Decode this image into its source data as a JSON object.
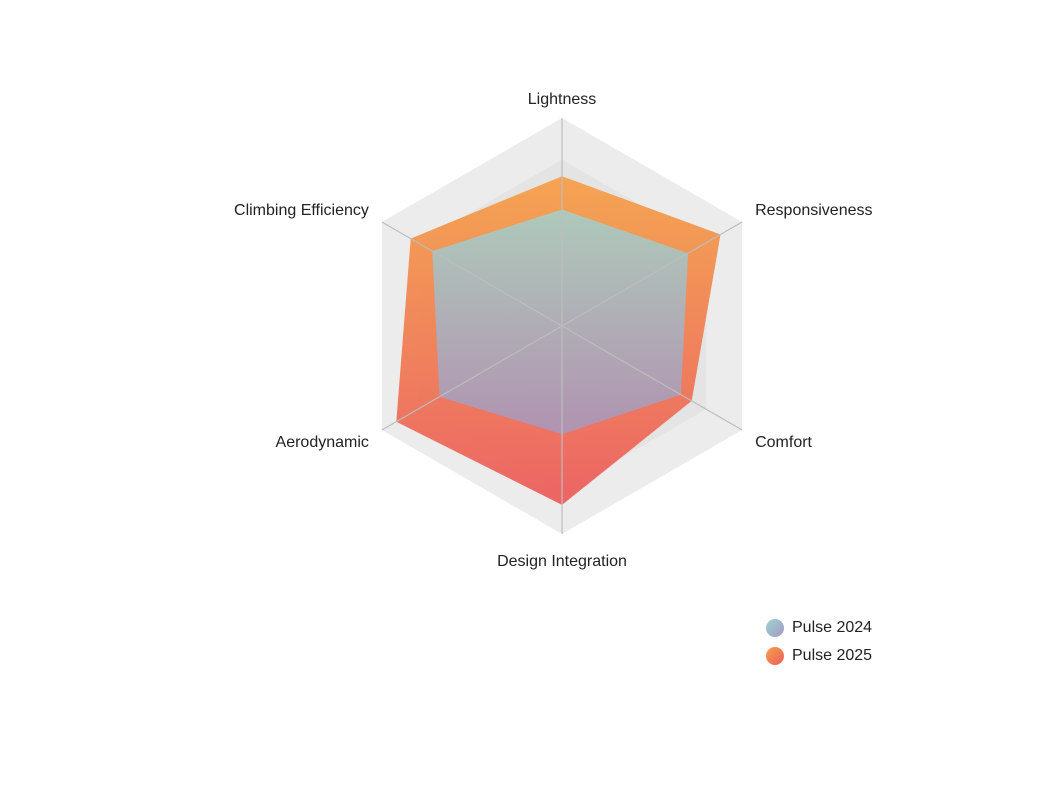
{
  "chart_data": {
    "type": "radar",
    "title": "",
    "categories": [
      "Lightness",
      "Responsiveness",
      "Comfort",
      "Design Integration",
      "Aerodynamic",
      "Climbing Efficiency"
    ],
    "range": [
      0,
      5
    ],
    "grid_levels": 5,
    "grid": true,
    "legend_position": "bottom-right",
    "series": [
      {
        "name": "Pulse 2024",
        "values": [
          2.8,
          3.5,
          3.3,
          2.6,
          3.4,
          3.6
        ],
        "gradient": [
          "#9fd3d1",
          "#a39ac2"
        ]
      },
      {
        "name": "Pulse 2025",
        "values": [
          3.6,
          4.4,
          3.6,
          4.3,
          4.6,
          4.2
        ],
        "gradient": [
          "#f5a14a",
          "#ec5d5e"
        ]
      }
    ]
  },
  "colors": {
    "grid_band_dark": "#e4e4e4",
    "grid_band_light": "#ececec",
    "axis_line": "#bdbdbd"
  }
}
